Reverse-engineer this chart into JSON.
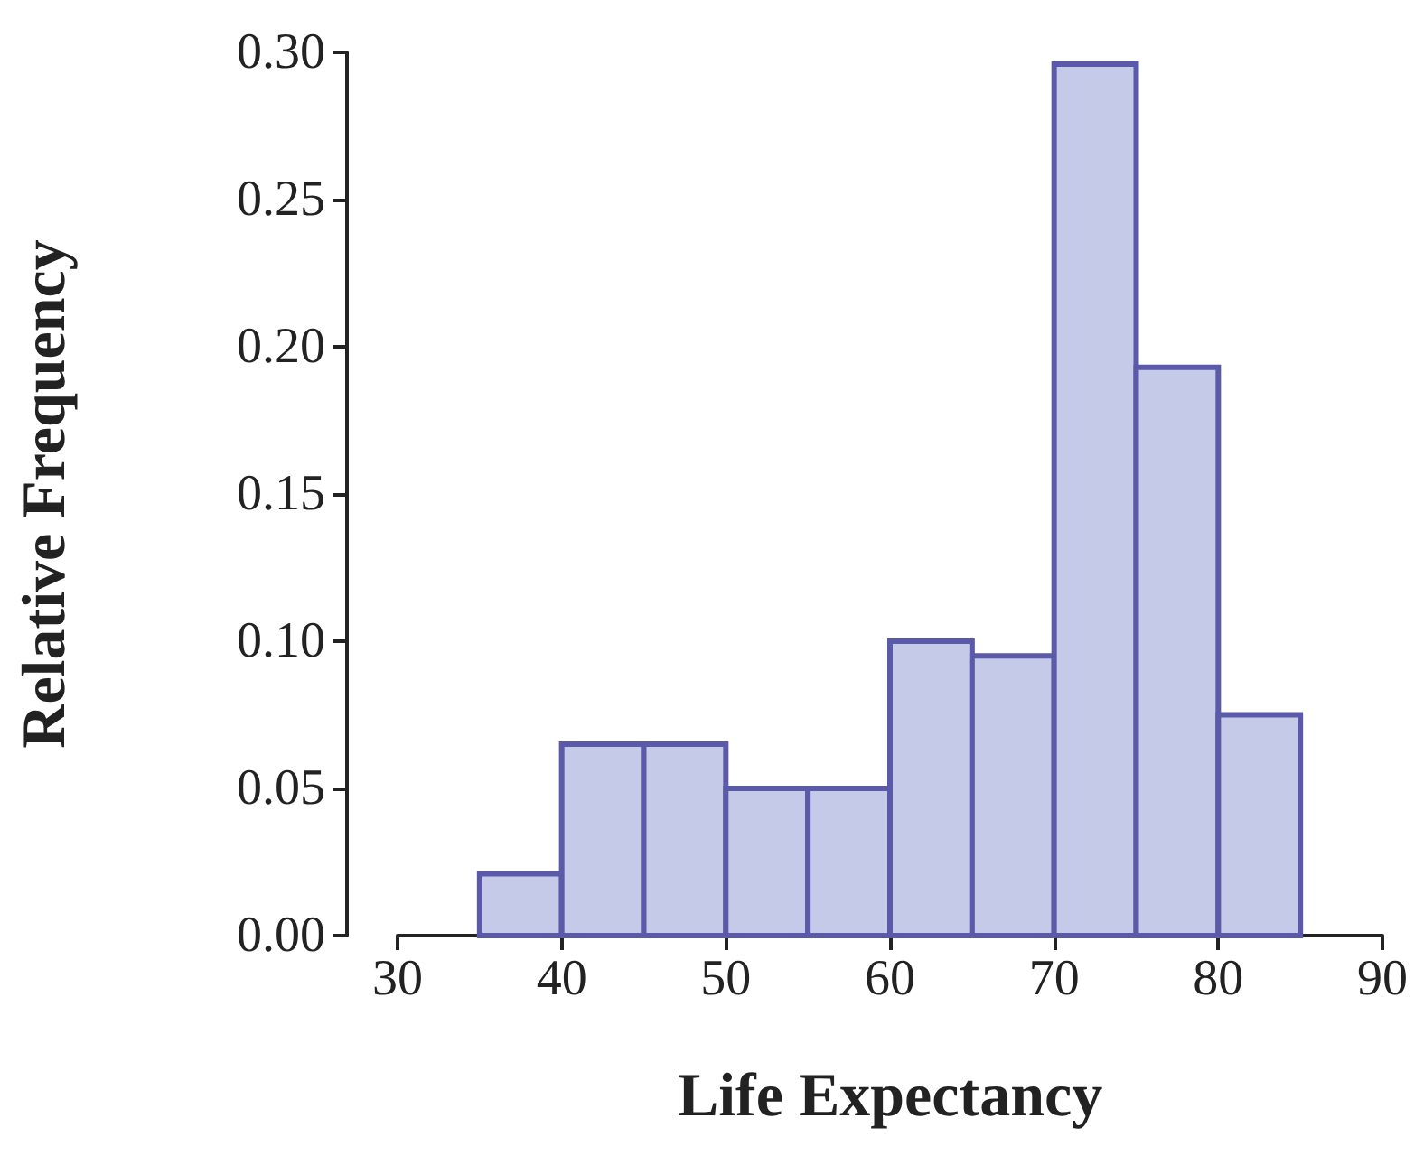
{
  "chart_data": {
    "type": "histogram",
    "xlabel": "Life Expectancy",
    "ylabel": "Relative Frequency",
    "bins": [
      35,
      40,
      45,
      50,
      55,
      60,
      65,
      70,
      75,
      80,
      85
    ],
    "values": [
      0.021,
      0.065,
      0.065,
      0.05,
      0.05,
      0.1,
      0.095,
      0.296,
      0.193,
      0.075
    ],
    "color": "#c5cae9",
    "xlim": [
      30,
      90
    ],
    "xticks": [
      30,
      40,
      50,
      60,
      70,
      80,
      90
    ],
    "ylim": [
      0,
      0.3
    ],
    "yticks": [
      {
        "value": 0,
        "label": "0.00"
      },
      {
        "value": 0.05,
        "label": "0.05"
      },
      {
        "value": 0.1,
        "label": "0.10"
      },
      {
        "value": 0.15,
        "label": "0.15"
      },
      {
        "value": 0.2,
        "label": "0.20"
      },
      {
        "value": 0.25,
        "label": "0.25"
      },
      {
        "value": 0.3,
        "label": "0.30"
      }
    ],
    "grid": false
  }
}
